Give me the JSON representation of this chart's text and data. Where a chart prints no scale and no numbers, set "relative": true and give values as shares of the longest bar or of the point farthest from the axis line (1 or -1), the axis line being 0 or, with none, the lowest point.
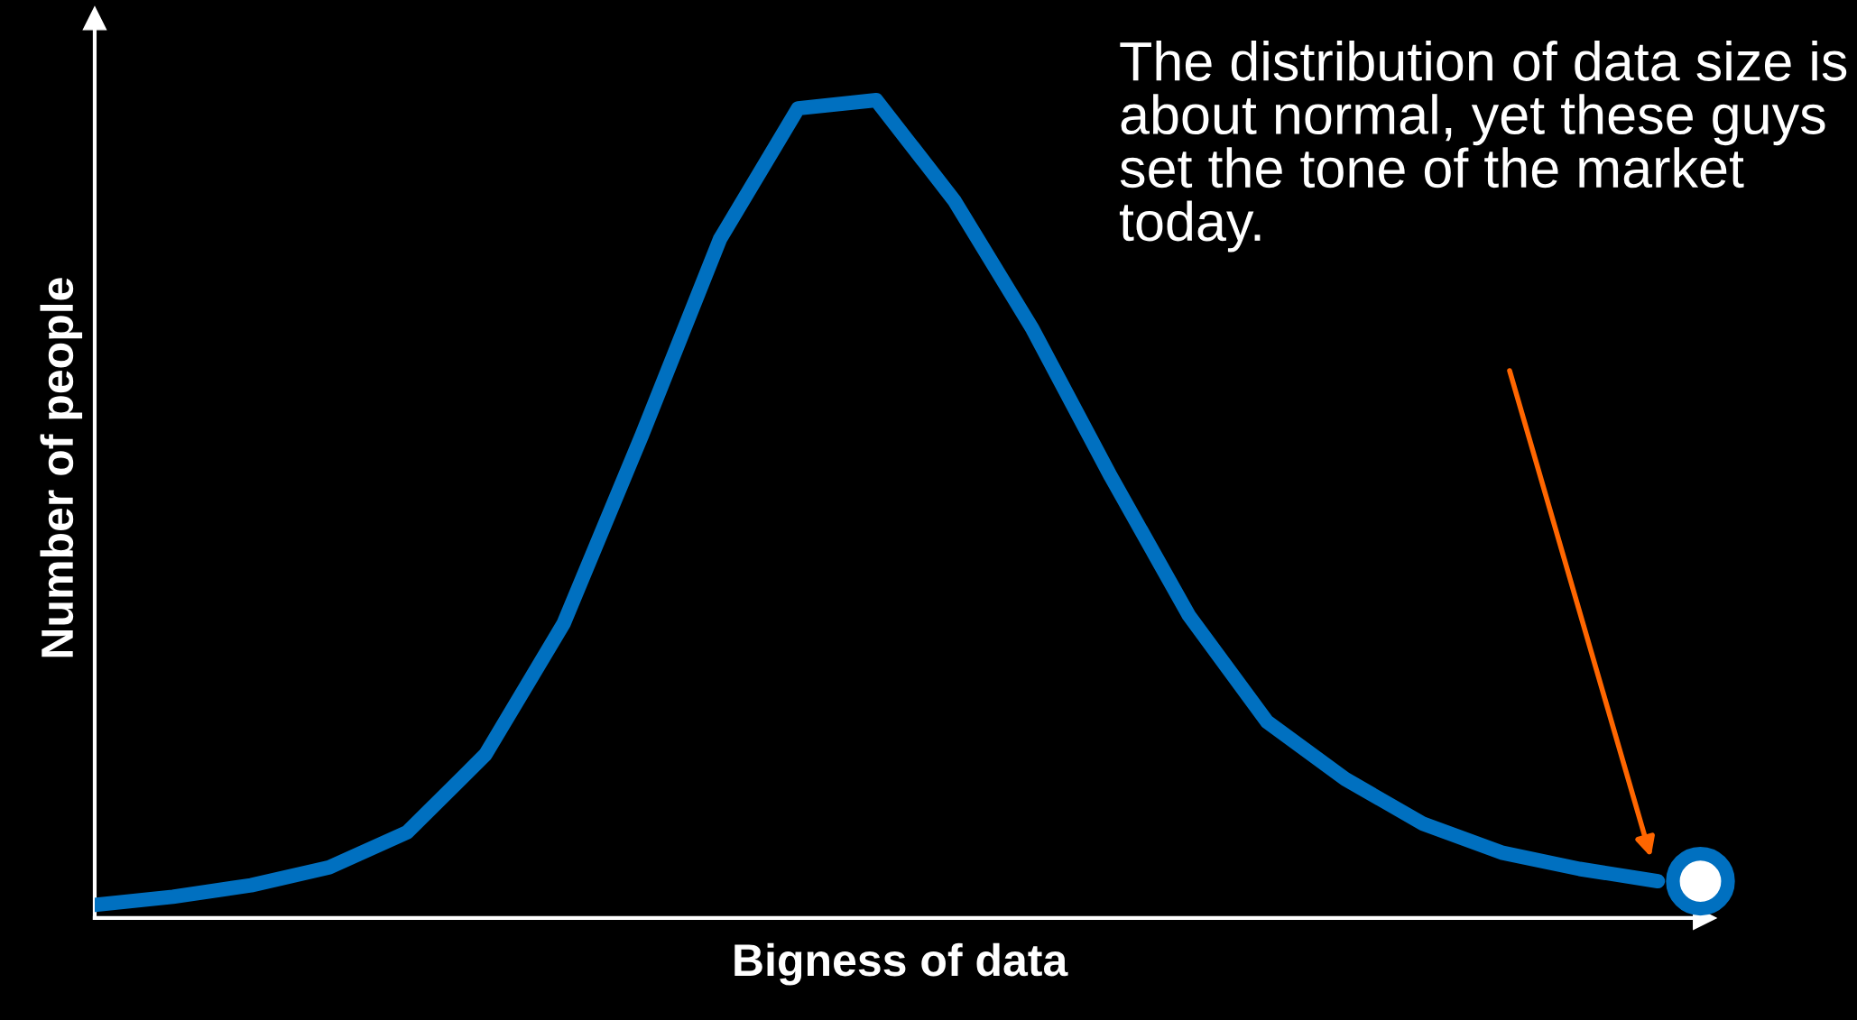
{
  "chart_data": {
    "type": "line",
    "relative": true,
    "xlabel": "Bigness of data",
    "ylabel": "Number of people",
    "categories": [
      null,
      null,
      null,
      null,
      null,
      null,
      null,
      null,
      null,
      null,
      null,
      null,
      null,
      null,
      null,
      null,
      null,
      null,
      null,
      null,
      null
    ],
    "series": [
      {
        "color": "#0070c0",
        "values": [
          0.016,
          0.026,
          0.04,
          0.062,
          0.105,
          0.2,
          0.36,
          0.59,
          0.83,
          0.99,
          1,
          0.877,
          0.72,
          0.54,
          0.37,
          0.24,
          0.17,
          0.115,
          0.08,
          0.06,
          0.045
        ]
      }
    ],
    "annotations": [
      "The distribution of data size is about normal, yet these guys set the tone of the market today."
    ],
    "grid": false,
    "legend": false,
    "tick_labels": false
  }
}
